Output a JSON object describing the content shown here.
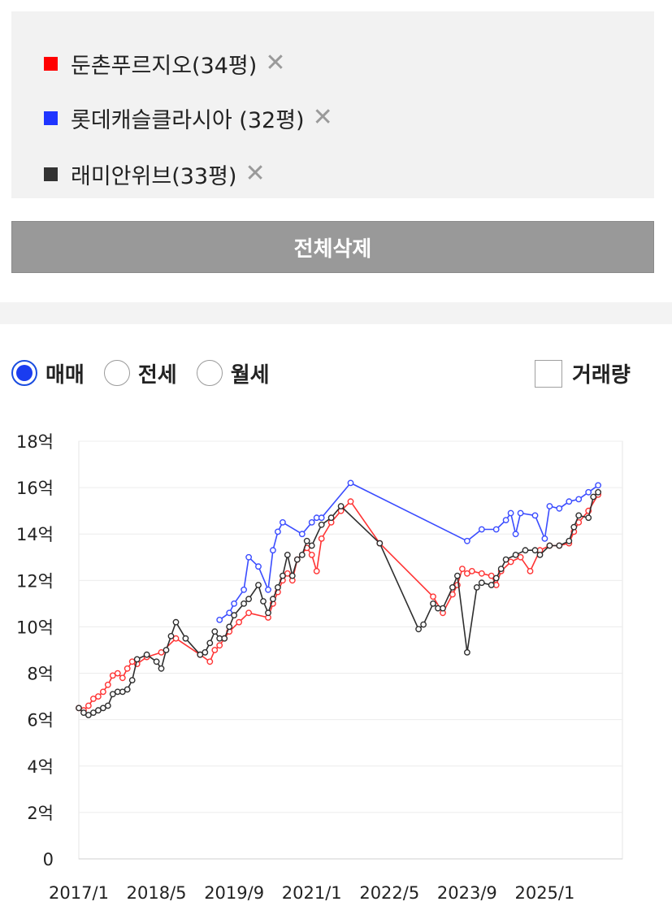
{
  "legend": {
    "items": [
      {
        "name": "둔촌푸르지오(34평)",
        "color": "#ff0000"
      },
      {
        "name": "롯데캐슬클라시아 (32평)",
        "color": "#1f35ff"
      },
      {
        "name": "래미안위브(33평)",
        "color": "#333333"
      }
    ],
    "close_icon": "close-icon"
  },
  "clear_all_label": "전체삭제",
  "trade_types": [
    {
      "label": "매매",
      "selected": true
    },
    {
      "label": "전세",
      "selected": false
    },
    {
      "label": "월세",
      "selected": false
    }
  ],
  "volume_label": "거래량",
  "volume_checked": false,
  "chart_data": {
    "type": "line",
    "title": "",
    "xlabel": "",
    "ylabel": "",
    "y_unit": "억",
    "ylim": [
      0,
      18
    ],
    "yticks": [
      0,
      2,
      4,
      6,
      8,
      10,
      12,
      14,
      16,
      18
    ],
    "ytick_labels": [
      "0",
      "2억",
      "4억",
      "6억",
      "8억",
      "10억",
      "12억",
      "14억",
      "16억",
      "18억"
    ],
    "xlim": [
      "2017/1",
      "2026/5"
    ],
    "xtick_labels": [
      "2017/1",
      "2018/5",
      "2019/9",
      "2021/1",
      "2022/5",
      "2023/9",
      "2025/1"
    ],
    "grid": true,
    "series": [
      {
        "name": "둔촌푸르지오(34평)",
        "color": "#ff3333",
        "points": [
          [
            "2017/1",
            6.5
          ],
          [
            "2017/2",
            6.4
          ],
          [
            "2017/3",
            6.6
          ],
          [
            "2017/4",
            6.9
          ],
          [
            "2017/5",
            7.0
          ],
          [
            "2017/6",
            7.2
          ],
          [
            "2017/7",
            7.5
          ],
          [
            "2017/8",
            7.9
          ],
          [
            "2017/9",
            8.0
          ],
          [
            "2017/10",
            7.8
          ],
          [
            "2017/11",
            8.2
          ],
          [
            "2017/12",
            8.5
          ],
          [
            "2018/1",
            8.4
          ],
          [
            "2018/3",
            8.7
          ],
          [
            "2018/6",
            8.9
          ],
          [
            "2018/9",
            9.5
          ],
          [
            "2019/2",
            8.8
          ],
          [
            "2019/4",
            8.5
          ],
          [
            "2019/5",
            9.0
          ],
          [
            "2019/6",
            9.2
          ],
          [
            "2019/7",
            9.5
          ],
          [
            "2019/8",
            9.8
          ],
          [
            "2019/10",
            10.2
          ],
          [
            "2019/12",
            10.6
          ],
          [
            "2020/4",
            10.4
          ],
          [
            "2020/5",
            11.0
          ],
          [
            "2020/6",
            11.5
          ],
          [
            "2020/7",
            12.0
          ],
          [
            "2020/8",
            12.3
          ],
          [
            "2020/9",
            12.0
          ],
          [
            "2020/10",
            12.9
          ],
          [
            "2020/12",
            13.4
          ],
          [
            "2021/1",
            13.1
          ],
          [
            "2021/2",
            12.4
          ],
          [
            "2021/3",
            13.8
          ],
          [
            "2021/5",
            14.5
          ],
          [
            "2021/7",
            15.0
          ],
          [
            "2021/9",
            15.4
          ],
          [
            "2022/3",
            13.6
          ],
          [
            "2023/2",
            11.3
          ],
          [
            "2023/4",
            10.6
          ],
          [
            "2023/6",
            11.4
          ],
          [
            "2023/7",
            11.8
          ],
          [
            "2023/8",
            12.5
          ],
          [
            "2023/9",
            12.3
          ],
          [
            "2023/10",
            12.4
          ],
          [
            "2023/12",
            12.3
          ],
          [
            "2024/2",
            12.2
          ],
          [
            "2024/3",
            11.8
          ],
          [
            "2024/4",
            12.4
          ],
          [
            "2024/6",
            12.8
          ],
          [
            "2024/8",
            13.0
          ],
          [
            "2024/10",
            12.4
          ],
          [
            "2024/12",
            13.3
          ],
          [
            "2025/2",
            13.5
          ],
          [
            "2025/4",
            13.5
          ],
          [
            "2025/6",
            13.6
          ],
          [
            "2025/7",
            14.1
          ],
          [
            "2025/8",
            14.5
          ],
          [
            "2025/10",
            15.0
          ],
          [
            "2025/12",
            15.7
          ]
        ]
      },
      {
        "name": "롯데캐슬클라시아 (32평)",
        "color": "#3a4cff",
        "points": [
          [
            "2019/6",
            10.3
          ],
          [
            "2019/8",
            10.6
          ],
          [
            "2019/9",
            11.0
          ],
          [
            "2019/11",
            11.6
          ],
          [
            "2019/12",
            13.0
          ],
          [
            "2020/2",
            12.6
          ],
          [
            "2020/4",
            11.6
          ],
          [
            "2020/5",
            13.3
          ],
          [
            "2020/6",
            14.1
          ],
          [
            "2020/7",
            14.5
          ],
          [
            "2020/11",
            14.0
          ],
          [
            "2021/1",
            14.5
          ],
          [
            "2021/2",
            14.7
          ],
          [
            "2021/3",
            14.7
          ],
          [
            "2021/9",
            16.2
          ],
          [
            "2023/9",
            13.7
          ],
          [
            "2023/12",
            14.2
          ],
          [
            "2024/3",
            14.2
          ],
          [
            "2024/5",
            14.6
          ],
          [
            "2024/6",
            14.9
          ],
          [
            "2024/7",
            14.0
          ],
          [
            "2024/8",
            14.9
          ],
          [
            "2024/11",
            14.8
          ],
          [
            "2025/1",
            13.8
          ],
          [
            "2025/2",
            15.2
          ],
          [
            "2025/4",
            15.1
          ],
          [
            "2025/6",
            15.4
          ],
          [
            "2025/8",
            15.5
          ],
          [
            "2025/10",
            15.8
          ],
          [
            "2025/12",
            16.1
          ]
        ]
      },
      {
        "name": "래미안위브(33평)",
        "color": "#2e2e2e",
        "points": [
          [
            "2017/1",
            6.5
          ],
          [
            "2017/2",
            6.3
          ],
          [
            "2017/3",
            6.2
          ],
          [
            "2017/4",
            6.3
          ],
          [
            "2017/5",
            6.4
          ],
          [
            "2017/6",
            6.5
          ],
          [
            "2017/7",
            6.6
          ],
          [
            "2017/8",
            7.1
          ],
          [
            "2017/9",
            7.2
          ],
          [
            "2017/10",
            7.2
          ],
          [
            "2017/11",
            7.3
          ],
          [
            "2017/12",
            7.7
          ],
          [
            "2018/1",
            8.6
          ],
          [
            "2018/3",
            8.8
          ],
          [
            "2018/5",
            8.5
          ],
          [
            "2018/6",
            8.2
          ],
          [
            "2018/7",
            9.0
          ],
          [
            "2018/8",
            9.6
          ],
          [
            "2018/9",
            10.2
          ],
          [
            "2018/11",
            9.5
          ],
          [
            "2019/2",
            8.8
          ],
          [
            "2019/3",
            8.9
          ],
          [
            "2019/4",
            9.3
          ],
          [
            "2019/5",
            9.8
          ],
          [
            "2019/6",
            9.5
          ],
          [
            "2019/7",
            9.5
          ],
          [
            "2019/8",
            10.0
          ],
          [
            "2019/9",
            10.5
          ],
          [
            "2019/11",
            11.0
          ],
          [
            "2019/12",
            11.2
          ],
          [
            "2020/2",
            11.8
          ],
          [
            "2020/3",
            11.1
          ],
          [
            "2020/4",
            10.6
          ],
          [
            "2020/5",
            11.2
          ],
          [
            "2020/6",
            11.7
          ],
          [
            "2020/7",
            12.2
          ],
          [
            "2020/8",
            13.1
          ],
          [
            "2020/9",
            12.2
          ],
          [
            "2020/10",
            12.9
          ],
          [
            "2020/11",
            13.1
          ],
          [
            "2020/12",
            13.7
          ],
          [
            "2021/1",
            13.5
          ],
          [
            "2021/3",
            14.4
          ],
          [
            "2021/5",
            14.7
          ],
          [
            "2021/7",
            15.2
          ],
          [
            "2022/3",
            13.6
          ],
          [
            "2022/11",
            9.9
          ],
          [
            "2022/12",
            10.1
          ],
          [
            "2023/2",
            11.0
          ],
          [
            "2023/3",
            10.8
          ],
          [
            "2023/4",
            10.8
          ],
          [
            "2023/6",
            11.7
          ],
          [
            "2023/7",
            12.2
          ],
          [
            "2023/9",
            8.9
          ],
          [
            "2023/11",
            11.7
          ],
          [
            "2023/12",
            11.9
          ],
          [
            "2024/2",
            11.8
          ],
          [
            "2024/3",
            12.1
          ],
          [
            "2024/4",
            12.5
          ],
          [
            "2024/5",
            12.9
          ],
          [
            "2024/7",
            13.1
          ],
          [
            "2024/9",
            13.3
          ],
          [
            "2024/11",
            13.3
          ],
          [
            "2024/12",
            13.1
          ],
          [
            "2025/2",
            13.5
          ],
          [
            "2025/4",
            13.5
          ],
          [
            "2025/6",
            13.7
          ],
          [
            "2025/7",
            14.3
          ],
          [
            "2025/8",
            14.8
          ],
          [
            "2025/10",
            14.7
          ],
          [
            "2025/11",
            15.6
          ],
          [
            "2025/12",
            15.8
          ]
        ]
      }
    ]
  }
}
